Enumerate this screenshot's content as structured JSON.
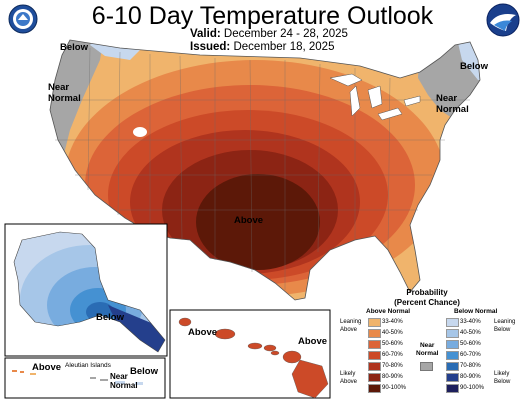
{
  "header": {
    "title": "6-10 Day Temperature Outlook",
    "valid_label": "Valid:",
    "valid_dates": "December 24 - 28, 2025",
    "issued_label": "Issued:",
    "issued_date": "December 18, 2025"
  },
  "map_labels": {
    "below_nw": "Below",
    "near_normal_nw": "Near\nNormal",
    "below_ne": "Below",
    "near_normal_ne": "Near\nNormal",
    "above_center": "Above",
    "below_alaska": "Below",
    "above_hawaii_w": "Above",
    "above_hawaii_e": "Above",
    "above_aleutian": "Above",
    "aleutian_islands": "Aleutian Islands",
    "below_aleutian": "Below",
    "near_normal_aleutian": "Near\nNormal"
  },
  "legend": {
    "title": "Probability\n(Percent Chance)",
    "above_header": "Above Normal",
    "near_header": "Near\nNormal",
    "below_header": "Below Normal",
    "leaning_above": "Leaning\nAbove",
    "likely_above": "Likely\nAbove",
    "leaning_below": "Leaning\nBelow",
    "likely_below": "Likely\nBelow",
    "above_ranges": [
      "33-40%",
      "40-50%",
      "50-60%",
      "60-70%",
      "70-80%",
      "80-90%",
      "90-100%"
    ],
    "below_ranges": [
      "33-40%",
      "40-50%",
      "50-60%",
      "60-70%",
      "70-80%",
      "80-90%",
      "90-100%"
    ],
    "above_colors": [
      "#f0b46c",
      "#e8894a",
      "#dc6438",
      "#cc4a28",
      "#b0341e",
      "#8c2414",
      "#5c1808"
    ],
    "below_colors": [
      "#c7d8ee",
      "#a6c6e8",
      "#78acdf",
      "#4591d2",
      "#2a6cb4",
      "#243f8c",
      "#1d1f5c"
    ],
    "near_color": "#a6a6a6"
  },
  "logos": {
    "left": "noaa-doc-seal-icon",
    "right": "noaa-logo-icon"
  }
}
